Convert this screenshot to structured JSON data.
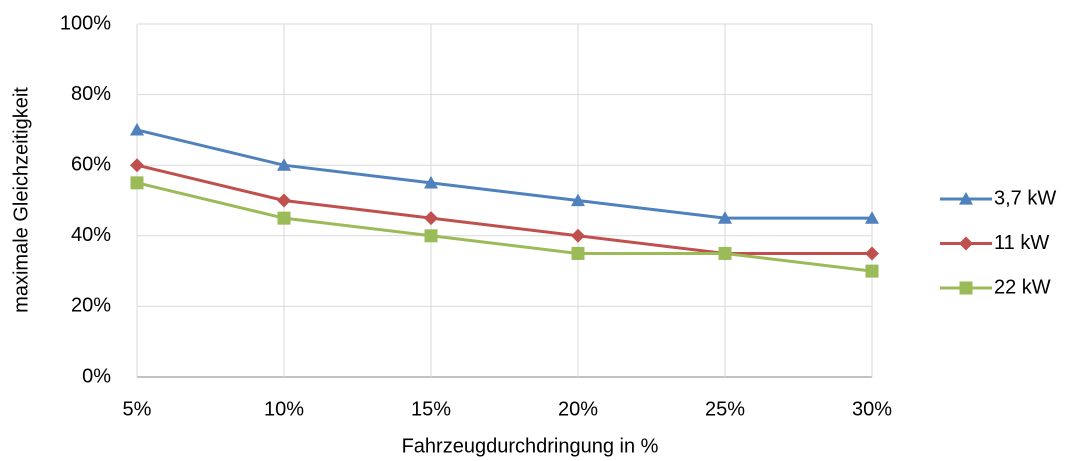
{
  "chart_data": {
    "type": "line",
    "x_label": "Fahrzeugdurchdringung in %",
    "y_label": "maximale Gleichzeitigkeit",
    "x": [
      5,
      10,
      15,
      20,
      25,
      30
    ],
    "xlim": [
      5,
      30
    ],
    "xticks": [
      {
        "value": 5,
        "label": "5%"
      },
      {
        "value": 10,
        "label": "10%"
      },
      {
        "value": 15,
        "label": "15%"
      },
      {
        "value": 20,
        "label": "20%"
      },
      {
        "value": 25,
        "label": "25%"
      },
      {
        "value": 30,
        "label": "30%"
      }
    ],
    "ylim": [
      0,
      100
    ],
    "yticks": [
      {
        "value": 0,
        "label": "0%"
      },
      {
        "value": 20,
        "label": "20%"
      },
      {
        "value": 40,
        "label": "40%"
      },
      {
        "value": 60,
        "label": "60%"
      },
      {
        "value": 80,
        "label": "80%"
      },
      {
        "value": 100,
        "label": "100%"
      }
    ],
    "grid": true,
    "legend": "right",
    "series": [
      {
        "name": "3,7 kW",
        "color": "#4f81bd",
        "marker": "triangle",
        "values": [
          70,
          60,
          55,
          50,
          45,
          45
        ]
      },
      {
        "name": "11 kW",
        "color": "#c0504d",
        "marker": "diamond",
        "values": [
          60,
          50,
          45,
          40,
          35,
          35
        ]
      },
      {
        "name": "22 kW",
        "color": "#9bbb59",
        "marker": "square",
        "values": [
          55,
          45,
          40,
          35,
          35,
          30
        ]
      }
    ]
  }
}
